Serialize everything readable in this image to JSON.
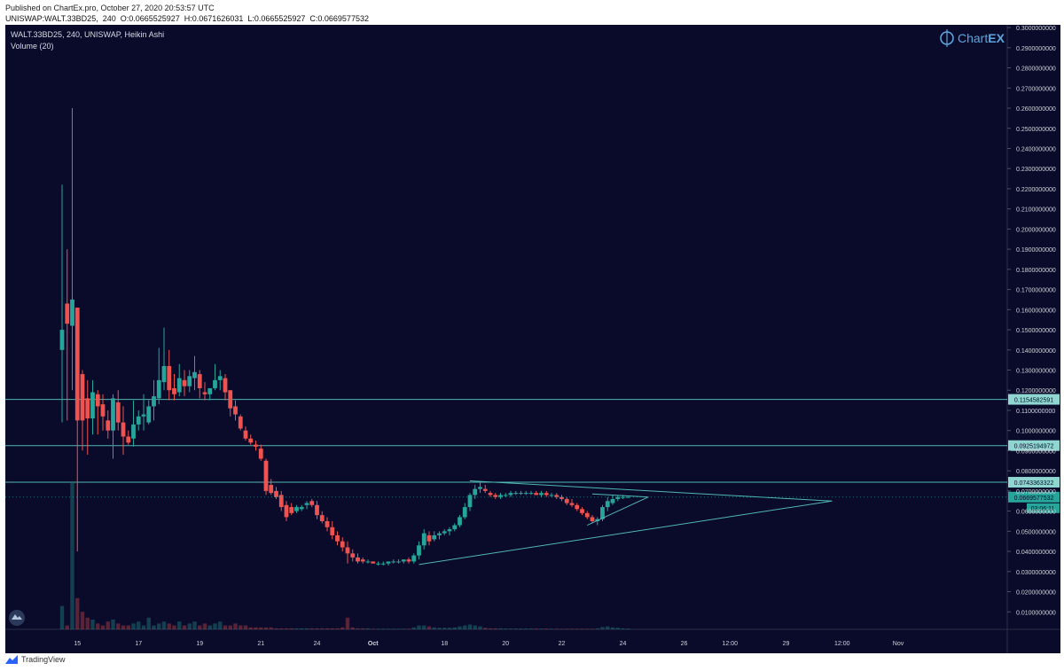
{
  "header": {
    "published": "Published on ChartEx.pro, October 27, 2020 20:53:57 UTC",
    "ohlc": "UNISWAP:WALT.33BD25,  240  O:0.0665525927  H:0.0671626031  L:0.0665525927  C:0.0669577532"
  },
  "legend": {
    "symbol_line": "WALT.33BD25, 240, UNISWAP, Heikin Ashi",
    "volume_line": "Volume (20)"
  },
  "logo": {
    "text_a": "Chart",
    "text_b": "EX"
  },
  "footer": {
    "brand": "TradingView"
  },
  "colors": {
    "background": "#0a0a2a",
    "up": "#26a69a",
    "down": "#ef5350",
    "line": "#4fb8b0",
    "axis_text": "#cfd3dc"
  },
  "chart_data": {
    "type": "candlestick",
    "title": "WALT.33BD25, 240, UNISWAP, Heikin Ashi",
    "ylim": [
      0.0,
      0.3
    ],
    "y_ticks": [
      "0.3000000000",
      "0.2900000000",
      "0.2800000000",
      "0.2700000000",
      "0.2600000000",
      "0.2500000000",
      "0.2400000000",
      "0.2300000000",
      "0.2200000000",
      "0.2100000000",
      "0.2000000000",
      "0.1900000000",
      "0.1800000000",
      "0.1700000000",
      "0.1600000000",
      "0.1500000000",
      "0.1400000000",
      "0.1300000000",
      "0.1200000000",
      "0.1100000000",
      "0.1000000000",
      "0.0900000000",
      "0.0800000000",
      "0.0700000000",
      "0.0600000000",
      "0.0500000000",
      "0.0400000000",
      "0.0300000000",
      "0.0200000000",
      "0.0100000000"
    ],
    "y_tick_values": [
      0.3,
      0.29,
      0.28,
      0.27,
      0.26,
      0.25,
      0.24,
      0.23,
      0.22,
      0.21,
      0.2,
      0.19,
      0.18,
      0.17,
      0.16,
      0.15,
      0.14,
      0.13,
      0.12,
      0.11,
      0.1,
      0.09,
      0.08,
      0.07,
      0.06,
      0.05,
      0.04,
      0.03,
      0.02,
      0.01
    ],
    "x_ticks": [
      {
        "label": "15",
        "i": 3,
        "bold": false
      },
      {
        "label": "17",
        "i": 15,
        "bold": false
      },
      {
        "label": "19",
        "i": 27,
        "bold": false
      },
      {
        "label": "21",
        "i": 39,
        "bold": false
      },
      {
        "label": "24",
        "i": 50,
        "bold": false
      },
      {
        "label": "Oct",
        "i": 61,
        "bold": true
      },
      {
        "label": "18",
        "i": 75,
        "bold": false
      },
      {
        "label": "20",
        "i": 87,
        "bold": false
      },
      {
        "label": "22",
        "i": 98,
        "bold": false
      },
      {
        "label": "24",
        "i": 110,
        "bold": false
      },
      {
        "label": "26",
        "i": 122,
        "bold": false
      },
      {
        "label": "12:00",
        "i": 131,
        "bold": false
      },
      {
        "label": "29",
        "i": 142,
        "bold": false
      },
      {
        "label": "12:00",
        "i": 153,
        "bold": false
      },
      {
        "label": "Nov",
        "i": 164,
        "bold": false
      }
    ],
    "horizontal_levels": [
      {
        "value": 0.1154582591,
        "label": "0.1154582591"
      },
      {
        "value": 0.0925194972,
        "label": "0.0925194972"
      },
      {
        "value": 0.0743363322,
        "label": "0.0743363322"
      }
    ],
    "last_price": {
      "value": 0.0669577532,
      "label": "0.0669577532",
      "countdown": "03:06:11"
    },
    "candles": [
      {
        "o": 0.14,
        "h": 0.222,
        "l": 0.104,
        "c": 0.15,
        "v": 0.12
      },
      {
        "o": 0.163,
        "h": 0.19,
        "l": 0.105,
        "c": 0.153,
        "v": 0.02
      },
      {
        "o": 0.152,
        "h": 0.26,
        "l": 0.12,
        "c": 0.165,
        "v": 0.75
      },
      {
        "o": 0.161,
        "h": 0.161,
        "l": 0.04,
        "c": 0.105,
        "v": 0.16
      },
      {
        "o": 0.128,
        "h": 0.13,
        "l": 0.09,
        "c": 0.105,
        "v": 0.09
      },
      {
        "o": 0.116,
        "h": 0.125,
        "l": 0.088,
        "c": 0.106,
        "v": 0.06
      },
      {
        "o": 0.106,
        "h": 0.125,
        "l": 0.098,
        "c": 0.119,
        "v": 0.05
      },
      {
        "o": 0.118,
        "h": 0.12,
        "l": 0.098,
        "c": 0.112,
        "v": 0.03
      },
      {
        "o": 0.113,
        "h": 0.118,
        "l": 0.1,
        "c": 0.107,
        "v": 0.02
      },
      {
        "o": 0.105,
        "h": 0.11,
        "l": 0.096,
        "c": 0.1,
        "v": 0.04
      },
      {
        "o": 0.1,
        "h": 0.118,
        "l": 0.086,
        "c": 0.116,
        "v": 0.05
      },
      {
        "o": 0.114,
        "h": 0.12,
        "l": 0.1,
        "c": 0.104,
        "v": 0.03
      },
      {
        "o": 0.104,
        "h": 0.112,
        "l": 0.088,
        "c": 0.097,
        "v": 0.02
      },
      {
        "o": 0.097,
        "h": 0.1,
        "l": 0.093,
        "c": 0.094,
        "v": 0.02
      },
      {
        "o": 0.096,
        "h": 0.115,
        "l": 0.092,
        "c": 0.103,
        "v": 0.03
      },
      {
        "o": 0.103,
        "h": 0.11,
        "l": 0.1,
        "c": 0.107,
        "v": 0.04
      },
      {
        "o": 0.107,
        "h": 0.118,
        "l": 0.1,
        "c": 0.108,
        "v": 0.02
      },
      {
        "o": 0.104,
        "h": 0.115,
        "l": 0.103,
        "c": 0.112,
        "v": 0.06
      },
      {
        "o": 0.112,
        "h": 0.125,
        "l": 0.105,
        "c": 0.117,
        "v": 0.02
      },
      {
        "o": 0.116,
        "h": 0.141,
        "l": 0.113,
        "c": 0.125,
        "v": 0.03
      },
      {
        "o": 0.124,
        "h": 0.151,
        "l": 0.12,
        "c": 0.132,
        "v": 0.04
      },
      {
        "o": 0.132,
        "h": 0.14,
        "l": 0.115,
        "c": 0.12,
        "v": 0.03
      },
      {
        "o": 0.121,
        "h": 0.128,
        "l": 0.115,
        "c": 0.118,
        "v": 0.02
      },
      {
        "o": 0.119,
        "h": 0.133,
        "l": 0.117,
        "c": 0.126,
        "v": 0.04
      },
      {
        "o": 0.125,
        "h": 0.13,
        "l": 0.117,
        "c": 0.122,
        "v": 0.02
      },
      {
        "o": 0.122,
        "h": 0.13,
        "l": 0.119,
        "c": 0.127,
        "v": 0.03
      },
      {
        "o": 0.126,
        "h": 0.137,
        "l": 0.12,
        "c": 0.129,
        "v": 0.04
      },
      {
        "o": 0.128,
        "h": 0.13,
        "l": 0.116,
        "c": 0.121,
        "v": 0.02
      },
      {
        "o": 0.119,
        "h": 0.124,
        "l": 0.115,
        "c": 0.118,
        "v": 0.03
      },
      {
        "o": 0.118,
        "h": 0.12,
        "l": 0.115,
        "c": 0.121,
        "v": 0.02
      },
      {
        "o": 0.121,
        "h": 0.133,
        "l": 0.12,
        "c": 0.125,
        "v": 0.03
      },
      {
        "o": 0.125,
        "h": 0.13,
        "l": 0.12,
        "c": 0.127,
        "v": 0.04
      },
      {
        "o": 0.126,
        "h": 0.128,
        "l": 0.115,
        "c": 0.119,
        "v": 0.02
      },
      {
        "o": 0.12,
        "h": 0.12,
        "l": 0.107,
        "c": 0.111,
        "v": 0.02
      },
      {
        "o": 0.112,
        "h": 0.115,
        "l": 0.105,
        "c": 0.108,
        "v": 0.03
      },
      {
        "o": 0.107,
        "h": 0.108,
        "l": 0.1,
        "c": 0.101,
        "v": 0.02
      },
      {
        "o": 0.1,
        "h": 0.102,
        "l": 0.095,
        "c": 0.096,
        "v": 0.02
      },
      {
        "o": 0.096,
        "h": 0.098,
        "l": 0.093,
        "c": 0.094,
        "v": 0.01
      },
      {
        "o": 0.093,
        "h": 0.095,
        "l": 0.09,
        "c": 0.092,
        "v": 0.01
      },
      {
        "o": 0.091,
        "h": 0.093,
        "l": 0.085,
        "c": 0.086,
        "v": 0.01
      },
      {
        "o": 0.085,
        "h": 0.086,
        "l": 0.068,
        "c": 0.07,
        "v": 0.01
      },
      {
        "o": 0.073,
        "h": 0.076,
        "l": 0.068,
        "c": 0.069,
        "v": 0.01
      },
      {
        "o": 0.07,
        "h": 0.072,
        "l": 0.066,
        "c": 0.067,
        "v": 0.005
      },
      {
        "o": 0.068,
        "h": 0.07,
        "l": 0.06,
        "c": 0.062,
        "v": 0.005
      },
      {
        "o": 0.063,
        "h": 0.065,
        "l": 0.055,
        "c": 0.057,
        "v": 0.005
      },
      {
        "o": 0.062,
        "h": 0.064,
        "l": 0.058,
        "c": 0.059,
        "v": 0.005
      },
      {
        "o": 0.06,
        "h": 0.063,
        "l": 0.059,
        "c": 0.062,
        "v": 0.005
      },
      {
        "o": 0.061,
        "h": 0.063,
        "l": 0.06,
        "c": 0.062,
        "v": 0.005
      },
      {
        "o": 0.063,
        "h": 0.065,
        "l": 0.061,
        "c": 0.064,
        "v": 0.005
      },
      {
        "o": 0.065,
        "h": 0.066,
        "l": 0.062,
        "c": 0.063,
        "v": 0.005
      },
      {
        "o": 0.063,
        "h": 0.065,
        "l": 0.056,
        "c": 0.058,
        "v": 0.005
      },
      {
        "o": 0.058,
        "h": 0.06,
        "l": 0.054,
        "c": 0.055,
        "v": 0.005
      },
      {
        "o": 0.055,
        "h": 0.057,
        "l": 0.05,
        "c": 0.052,
        "v": 0.005
      },
      {
        "o": 0.052,
        "h": 0.055,
        "l": 0.046,
        "c": 0.048,
        "v": 0.005
      },
      {
        "o": 0.048,
        "h": 0.05,
        "l": 0.043,
        "c": 0.045,
        "v": 0.005
      },
      {
        "o": 0.045,
        "h": 0.047,
        "l": 0.04,
        "c": 0.042,
        "v": 0.01
      },
      {
        "o": 0.042,
        "h": 0.045,
        "l": 0.034,
        "c": 0.039,
        "v": 0.06
      },
      {
        "o": 0.039,
        "h": 0.041,
        "l": 0.035,
        "c": 0.037,
        "v": 0.01
      },
      {
        "o": 0.037,
        "h": 0.039,
        "l": 0.034,
        "c": 0.035,
        "v": 0.005
      },
      {
        "o": 0.036,
        "h": 0.037,
        "l": 0.034,
        "c": 0.035,
        "v": 0.005
      },
      {
        "o": 0.035,
        "h": 0.036,
        "l": 0.034,
        "c": 0.035,
        "v": 0.005
      },
      {
        "o": 0.035,
        "h": 0.035,
        "l": 0.034,
        "c": 0.034,
        "v": 0.003
      },
      {
        "o": 0.034,
        "h": 0.035,
        "l": 0.033,
        "c": 0.034,
        "v": 0.003
      },
      {
        "o": 0.034,
        "h": 0.035,
        "l": 0.033,
        "c": 0.034,
        "v": 0.003
      },
      {
        "o": 0.034,
        "h": 0.035,
        "l": 0.033,
        "c": 0.035,
        "v": 0.003
      },
      {
        "o": 0.035,
        "h": 0.036,
        "l": 0.034,
        "c": 0.035,
        "v": 0.003
      },
      {
        "o": 0.035,
        "h": 0.036,
        "l": 0.034,
        "c": 0.035,
        "v": 0.003
      },
      {
        "o": 0.035,
        "h": 0.036,
        "l": 0.034,
        "c": 0.036,
        "v": 0.003
      },
      {
        "o": 0.036,
        "h": 0.037,
        "l": 0.034,
        "c": 0.035,
        "v": 0.003
      },
      {
        "o": 0.035,
        "h": 0.039,
        "l": 0.034,
        "c": 0.038,
        "v": 0.01
      },
      {
        "o": 0.038,
        "h": 0.045,
        "l": 0.036,
        "c": 0.043,
        "v": 0.02
      },
      {
        "o": 0.043,
        "h": 0.051,
        "l": 0.041,
        "c": 0.049,
        "v": 0.02
      },
      {
        "o": 0.048,
        "h": 0.05,
        "l": 0.043,
        "c": 0.045,
        "v": 0.015
      },
      {
        "o": 0.046,
        "h": 0.05,
        "l": 0.045,
        "c": 0.048,
        "v": 0.01
      },
      {
        "o": 0.048,
        "h": 0.05,
        "l": 0.046,
        "c": 0.049,
        "v": 0.008
      },
      {
        "o": 0.049,
        "h": 0.051,
        "l": 0.048,
        "c": 0.05,
        "v": 0.008
      },
      {
        "o": 0.05,
        "h": 0.052,
        "l": 0.048,
        "c": 0.051,
        "v": 0.008
      },
      {
        "o": 0.051,
        "h": 0.054,
        "l": 0.05,
        "c": 0.053,
        "v": 0.01
      },
      {
        "o": 0.053,
        "h": 0.058,
        "l": 0.052,
        "c": 0.057,
        "v": 0.015
      },
      {
        "o": 0.057,
        "h": 0.064,
        "l": 0.056,
        "c": 0.062,
        "v": 0.02
      },
      {
        "o": 0.062,
        "h": 0.069,
        "l": 0.06,
        "c": 0.068,
        "v": 0.025
      },
      {
        "o": 0.068,
        "h": 0.073,
        "l": 0.066,
        "c": 0.071,
        "v": 0.02
      },
      {
        "o": 0.071,
        "h": 0.075,
        "l": 0.069,
        "c": 0.072,
        "v": 0.015
      },
      {
        "o": 0.071,
        "h": 0.073,
        "l": 0.069,
        "c": 0.07,
        "v": 0.008
      },
      {
        "o": 0.069,
        "h": 0.07,
        "l": 0.067,
        "c": 0.068,
        "v": 0.005
      },
      {
        "o": 0.068,
        "h": 0.069,
        "l": 0.066,
        "c": 0.067,
        "v": 0.005
      },
      {
        "o": 0.067,
        "h": 0.069,
        "l": 0.066,
        "c": 0.068,
        "v": 0.005
      },
      {
        "o": 0.068,
        "h": 0.069,
        "l": 0.067,
        "c": 0.068,
        "v": 0.004
      },
      {
        "o": 0.068,
        "h": 0.07,
        "l": 0.067,
        "c": 0.069,
        "v": 0.004
      },
      {
        "o": 0.069,
        "h": 0.07,
        "l": 0.068,
        "c": 0.069,
        "v": 0.004
      },
      {
        "o": 0.069,
        "h": 0.07,
        "l": 0.068,
        "c": 0.069,
        "v": 0.004
      },
      {
        "o": 0.069,
        "h": 0.07,
        "l": 0.068,
        "c": 0.069,
        "v": 0.004
      },
      {
        "o": 0.069,
        "h": 0.07,
        "l": 0.068,
        "c": 0.069,
        "v": 0.004
      },
      {
        "o": 0.069,
        "h": 0.07,
        "l": 0.068,
        "c": 0.068,
        "v": 0.004
      },
      {
        "o": 0.068,
        "h": 0.07,
        "l": 0.067,
        "c": 0.069,
        "v": 0.004
      },
      {
        "o": 0.069,
        "h": 0.07,
        "l": 0.067,
        "c": 0.068,
        "v": 0.004
      },
      {
        "o": 0.068,
        "h": 0.069,
        "l": 0.067,
        "c": 0.068,
        "v": 0.003
      },
      {
        "o": 0.068,
        "h": 0.069,
        "l": 0.066,
        "c": 0.067,
        "v": 0.003
      },
      {
        "o": 0.067,
        "h": 0.068,
        "l": 0.065,
        "c": 0.066,
        "v": 0.003
      },
      {
        "o": 0.066,
        "h": 0.067,
        "l": 0.063,
        "c": 0.064,
        "v": 0.003
      },
      {
        "o": 0.064,
        "h": 0.066,
        "l": 0.062,
        "c": 0.063,
        "v": 0.003
      },
      {
        "o": 0.063,
        "h": 0.064,
        "l": 0.06,
        "c": 0.061,
        "v": 0.003
      },
      {
        "o": 0.061,
        "h": 0.062,
        "l": 0.058,
        "c": 0.059,
        "v": 0.003
      },
      {
        "o": 0.059,
        "h": 0.06,
        "l": 0.056,
        "c": 0.057,
        "v": 0.003
      },
      {
        "o": 0.057,
        "h": 0.058,
        "l": 0.054,
        "c": 0.055,
        "v": 0.003
      },
      {
        "o": 0.055,
        "h": 0.057,
        "l": 0.053,
        "c": 0.056,
        "v": 0.005
      },
      {
        "o": 0.056,
        "h": 0.063,
        "l": 0.055,
        "c": 0.062,
        "v": 0.012
      },
      {
        "o": 0.062,
        "h": 0.067,
        "l": 0.06,
        "c": 0.065,
        "v": 0.015
      },
      {
        "o": 0.064,
        "h": 0.068,
        "l": 0.063,
        "c": 0.066,
        "v": 0.01
      },
      {
        "o": 0.066,
        "h": 0.068,
        "l": 0.065,
        "c": 0.067,
        "v": 0.008
      },
      {
        "o": 0.067,
        "h": 0.068,
        "l": 0.066,
        "c": 0.067,
        "v": 0.005
      },
      {
        "o": 0.0666,
        "h": 0.0672,
        "l": 0.0666,
        "c": 0.067,
        "v": 0.004
      }
    ],
    "trendlines": [
      {
        "from": {
          "i": 70,
          "p": 0.0335
        },
        "to": {
          "i": 151,
          "p": 0.065
        }
      },
      {
        "from": {
          "i": 80,
          "p": 0.075
        },
        "to": {
          "i": 151,
          "p": 0.065
        }
      },
      {
        "from": {
          "i": 103,
          "p": 0.053
        },
        "to": {
          "i": 115,
          "p": 0.067
        }
      },
      {
        "from": {
          "i": 104,
          "p": 0.0685
        },
        "to": {
          "i": 115,
          "p": 0.067
        }
      }
    ]
  }
}
